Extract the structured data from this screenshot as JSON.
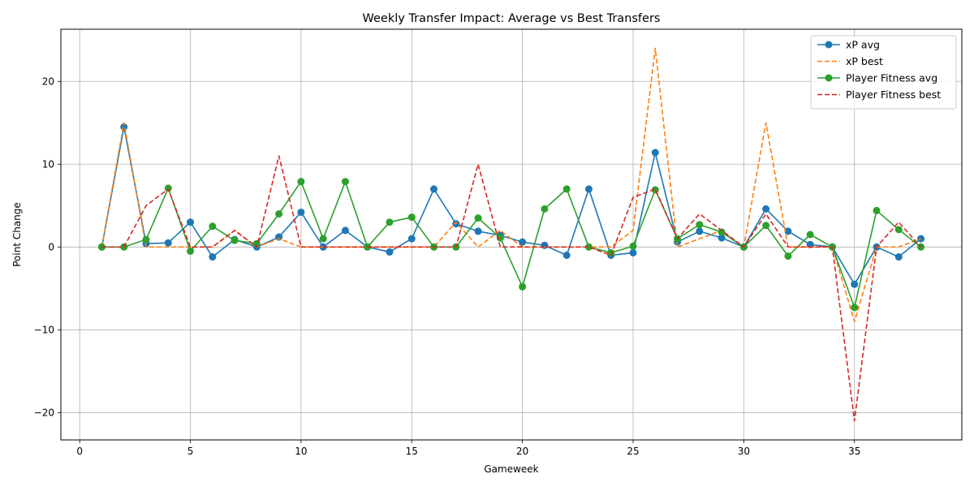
{
  "chart_data": {
    "type": "line",
    "title": "Weekly Transfer Impact: Average vs Best Transfers",
    "xlabel": "Gameweek",
    "ylabel": "Point Change",
    "xlim": [
      -0.85,
      39.85
    ],
    "ylim": [
      -23.3,
      26.3
    ],
    "xticks": [
      0,
      5,
      10,
      15,
      20,
      25,
      30,
      35
    ],
    "yticks": [
      -20,
      -10,
      0,
      10,
      20
    ],
    "grid": true,
    "legend_position": "top-right",
    "x": [
      1,
      2,
      3,
      4,
      5,
      6,
      7,
      8,
      9,
      10,
      11,
      12,
      13,
      14,
      15,
      16,
      17,
      18,
      19,
      20,
      21,
      22,
      23,
      24,
      25,
      26,
      27,
      28,
      29,
      30,
      31,
      32,
      33,
      34,
      35,
      36,
      37,
      38
    ],
    "series": [
      {
        "name": "xP avg",
        "color": "#1f77b4",
        "style": "solid-marker",
        "values": [
          0,
          14.5,
          0.4,
          0.5,
          3,
          -1.2,
          0.9,
          0,
          1.2,
          4.2,
          0,
          2,
          0,
          -0.6,
          1,
          7,
          2.8,
          1.9,
          1.4,
          0.6,
          0.2,
          -1,
          7,
          -1,
          -0.7,
          11.4,
          0.6,
          1.9,
          1.1,
          0,
          4.6,
          1.9,
          0.3,
          0,
          -4.5,
          0,
          -1.2,
          1
        ]
      },
      {
        "name": "xP best",
        "color": "#ff7f0e",
        "style": "dashed",
        "values": [
          0,
          15,
          0,
          0,
          0,
          0,
          2,
          0,
          1,
          0,
          0,
          0,
          0,
          0,
          0,
          0,
          3,
          0,
          2,
          0,
          0,
          0,
          0,
          0,
          2,
          24,
          0,
          1,
          2,
          0,
          15,
          0,
          0,
          0,
          -9,
          0,
          0,
          1
        ]
      },
      {
        "name": "Player Fitness avg",
        "color": "#2ca02c",
        "style": "solid-marker",
        "values": [
          0,
          0,
          0.9,
          7.1,
          -0.5,
          2.5,
          0.8,
          0.4,
          4,
          7.9,
          1,
          7.9,
          0,
          3,
          3.6,
          0,
          0,
          3.5,
          1.1,
          -4.8,
          4.6,
          7,
          0,
          -0.7,
          0.1,
          6.9,
          1,
          2.7,
          1.8,
          0,
          2.6,
          -1.1,
          1.5,
          0,
          -7.3,
          4.4,
          2.1,
          0
        ]
      },
      {
        "name": "Player Fitness best",
        "color": "#d62728",
        "style": "dashed",
        "values": [
          0,
          0,
          5,
          7,
          0,
          0,
          2,
          0,
          11,
          0,
          0,
          0,
          0,
          0,
          0,
          0,
          0,
          10,
          0,
          0,
          0,
          0,
          0,
          -1,
          6,
          7,
          1,
          4,
          2,
          0,
          4,
          0,
          0,
          0,
          -21,
          0,
          3,
          0
        ]
      }
    ]
  }
}
